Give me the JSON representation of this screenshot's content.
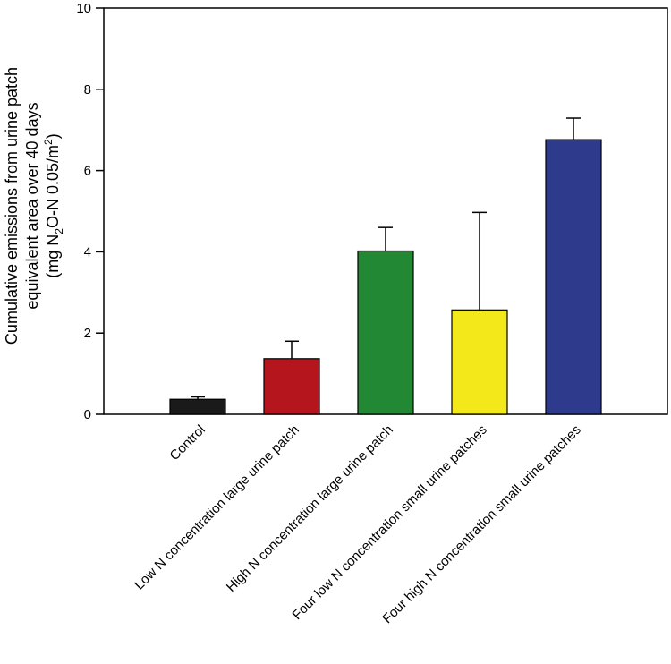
{
  "chart_data": {
    "type": "bar",
    "categories": [
      "Control",
      "Low N concentration large urine patch",
      "High N concentration large urine patch",
      "Four low N concentration small urine patches",
      "Four high N concentration small urine patches"
    ],
    "values": [
      0.37,
      1.37,
      4.02,
      2.57,
      6.76
    ],
    "errors": [
      0.06,
      0.43,
      0.58,
      2.4,
      0.53
    ],
    "colors": [
      "#1a1a1a",
      "#b5161e",
      "#228833",
      "#f2e81a",
      "#2e3a8c"
    ],
    "ylabel": {
      "line1": "Cumulative emissions from urine patch",
      "line2": "equivalent area over 40 days",
      "line3_part1": "(mg N",
      "line3_sub": "2",
      "line3_part2": "O-N 0.05/m",
      "line3_sup": "2",
      "line3_part3": ")"
    },
    "ylim": [
      0,
      10
    ],
    "yticks": [
      "0",
      "2",
      "4",
      "6",
      "8",
      "10"
    ],
    "grid": false
  }
}
